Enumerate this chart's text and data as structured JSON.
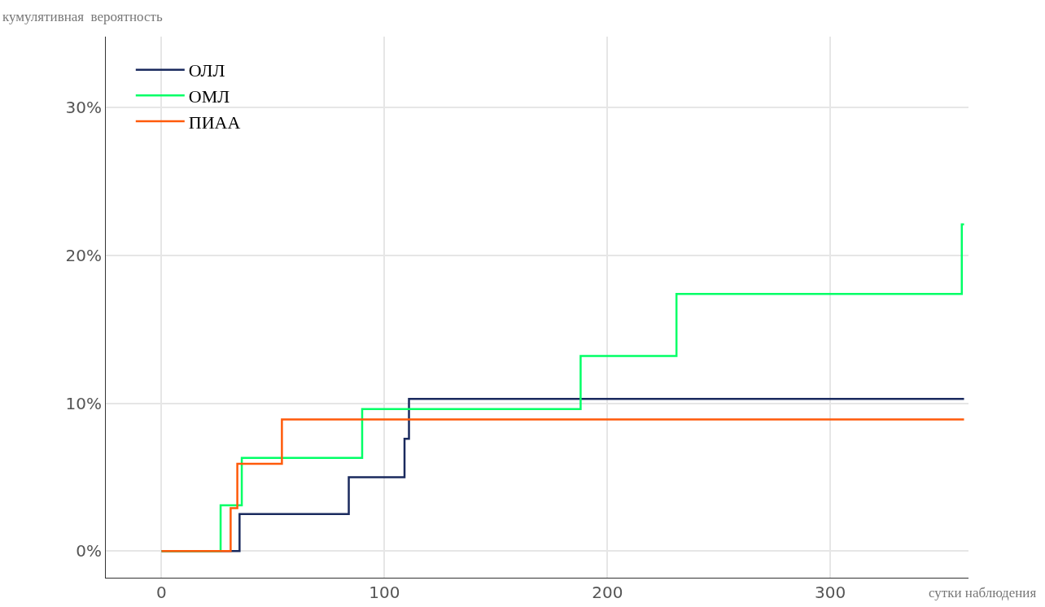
{
  "chart_data": {
    "type": "step",
    "xlabel": "сутки наблюдения",
    "ylabel": "кумулятивная  вероятность",
    "xlim": [
      -25,
      362
    ],
    "ylim": [
      -1.8,
      34.8
    ],
    "xticks": [
      0,
      100,
      200,
      300
    ],
    "yticks": [
      {
        "value": 0,
        "label": "0%"
      },
      {
        "value": 10,
        "label": "10%"
      },
      {
        "value": 20,
        "label": "20%"
      },
      {
        "value": 30,
        "label": "30%"
      }
    ],
    "grid": true,
    "legend": "top left",
    "line_style": "solid",
    "marker": "none",
    "series": [
      {
        "name": "ОЛЛ",
        "color": "#1a2a5e",
        "x": [
          0,
          35,
          84,
          109,
          111,
          360
        ],
        "values": [
          0,
          2.5,
          5.0,
          7.6,
          10.3,
          10.3
        ]
      },
      {
        "name": "ОМЛ",
        "color": "#00ff66",
        "x": [
          0,
          26.5,
          36,
          90,
          188,
          231,
          359,
          360
        ],
        "values": [
          0,
          3.1,
          6.3,
          9.6,
          13.2,
          17.4,
          22.1,
          22.1
        ]
      },
      {
        "name": "ПИАА",
        "color": "#ff5a0a",
        "x": [
          0,
          31,
          34,
          54,
          360
        ],
        "values": [
          0,
          2.9,
          5.9,
          8.9,
          8.9
        ]
      }
    ]
  }
}
